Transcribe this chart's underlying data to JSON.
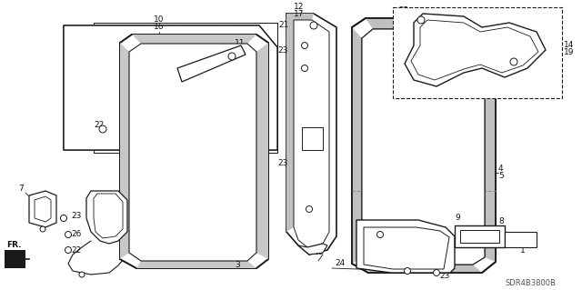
{
  "bg_color": "#ffffff",
  "line_color": "#1a1a1a",
  "label_color": "#111111",
  "diagram_code": "SDR4B3800B",
  "fig_width": 6.4,
  "fig_height": 3.19,
  "dpi": 100
}
